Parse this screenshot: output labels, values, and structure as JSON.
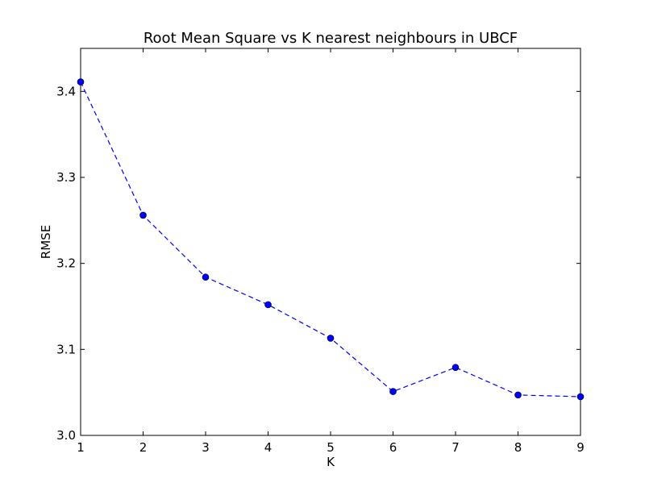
{
  "chart_data": {
    "type": "line",
    "title": "Root Mean Square vs K nearest neighbours in UBCF",
    "xlabel": "K",
    "ylabel": "RMSE",
    "xlim": [
      1,
      9
    ],
    "ylim": [
      3.0,
      3.45
    ],
    "xticks": [
      1,
      2,
      3,
      4,
      5,
      6,
      7,
      8,
      9
    ],
    "yticks": [
      3.0,
      3.1,
      3.2,
      3.3,
      3.4
    ],
    "yticklabels": [
      "3.0",
      "3.1",
      "3.2",
      "3.3",
      "3.4"
    ],
    "grid": false,
    "line_style": "dashed",
    "marker": "circle",
    "color": "#0000ff",
    "x": [
      1,
      2,
      3,
      4,
      5,
      6,
      7,
      8,
      9
    ],
    "y": [
      3.411,
      3.256,
      3.184,
      3.152,
      3.113,
      3.051,
      3.079,
      3.047,
      3.045
    ]
  }
}
